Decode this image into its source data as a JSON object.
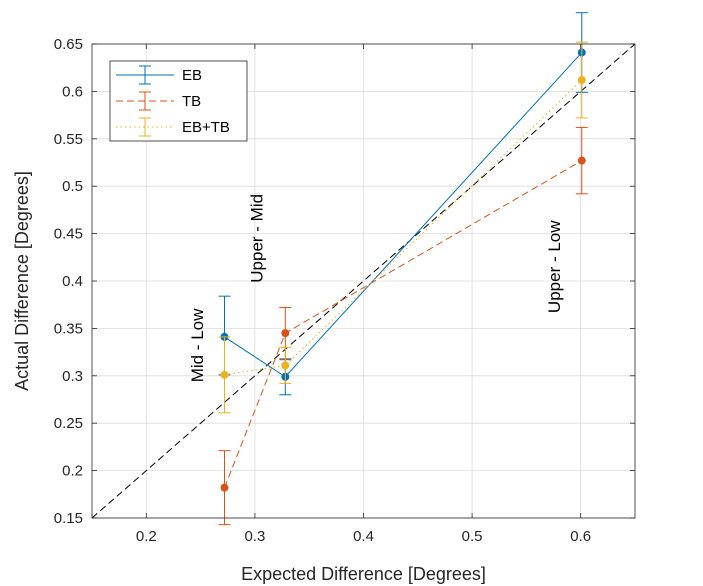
{
  "chart_data": {
    "type": "line",
    "title": "",
    "xlabel": "Expected Difference [Degrees]",
    "ylabel": "Actual Difference [Degrees]",
    "xlim": [
      0.15,
      0.65
    ],
    "ylim": [
      0.15,
      0.65
    ],
    "xticks": [
      "0.2",
      "0.3",
      "0.4",
      "0.5",
      "0.6"
    ],
    "xtick_values": [
      0.2,
      0.3,
      0.4,
      0.5,
      0.6
    ],
    "yticks": [
      "0.15",
      "0.2",
      "0.25",
      "0.3",
      "0.35",
      "0.4",
      "0.45",
      "0.5",
      "0.55",
      "0.6",
      "0.65"
    ],
    "ytick_values": [
      0.15,
      0.2,
      0.25,
      0.3,
      0.35,
      0.4,
      0.45,
      0.5,
      0.55,
      0.6,
      0.65
    ],
    "grid": true,
    "legend_position": "top-left",
    "reference_line": {
      "x": [
        0.15,
        0.65
      ],
      "y": [
        0.15,
        0.65
      ],
      "style": "dashed",
      "color": "#000000"
    },
    "series": [
      {
        "name": "EB",
        "color": "#0072BD",
        "style": "solid",
        "x": [
          0.272,
          0.328,
          0.601
        ],
        "y": [
          0.341,
          0.299,
          0.641
        ],
        "err_low": [
          0.04,
          0.019,
          0.042
        ],
        "err_high": [
          0.043,
          0.018,
          0.042
        ]
      },
      {
        "name": "TB",
        "color": "#D95319",
        "style": "dashed",
        "x": [
          0.272,
          0.328,
          0.601
        ],
        "y": [
          0.182,
          0.345,
          0.527
        ],
        "err_low": [
          0.039,
          0.027,
          0.035
        ],
        "err_high": [
          0.039,
          0.027,
          0.035
        ]
      },
      {
        "name": "EB+TB",
        "color": "#EDB120",
        "style": "dotted",
        "x": [
          0.272,
          0.328,
          0.601
        ],
        "y": [
          0.301,
          0.311,
          0.612
        ],
        "err_low": [
          0.04,
          0.019,
          0.04
        ],
        "err_high": [
          0.04,
          0.019,
          0.04
        ]
      }
    ],
    "annotations": [
      {
        "text": "Mid - Low",
        "x": 0.252,
        "y": 0.332
      },
      {
        "text": "Upper - Mid",
        "x": 0.307,
        "y": 0.445
      },
      {
        "text": "Upper - Low",
        "x": 0.581,
        "y": 0.415
      }
    ]
  }
}
